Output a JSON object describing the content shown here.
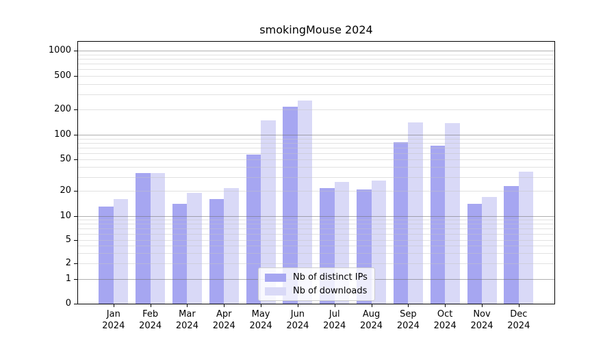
{
  "chart_data": {
    "type": "bar",
    "title": "smokingMouse 2024",
    "year": "2024",
    "categories": [
      "Jan",
      "Feb",
      "Mar",
      "Apr",
      "May",
      "Jun",
      "Jul",
      "Aug",
      "Sep",
      "Oct",
      "Nov",
      "Dec"
    ],
    "series": [
      {
        "name": "Nb of distinct IPs",
        "color": "#a6a6f1",
        "values": [
          13,
          34,
          14,
          16,
          57,
          215,
          22,
          21,
          81,
          74,
          14,
          23
        ]
      },
      {
        "name": "Nb of downloads",
        "color": "#d9d9f7",
        "values": [
          16,
          34,
          19,
          22,
          150,
          255,
          26,
          27,
          142,
          138,
          17,
          35
        ]
      }
    ],
    "y_ticks": [
      0,
      1,
      2,
      5,
      10,
      20,
      50,
      100,
      200,
      500,
      1000
    ],
    "xlabel": "",
    "ylabel": "",
    "ylim": [
      0,
      1000
    ],
    "y_scale": "log-like with zero baseline",
    "grid": "on",
    "legend_position": "bottom-center"
  },
  "colors": {
    "background": "#ffffff",
    "axis": "#000000",
    "major_grid": "#b0b0b0",
    "minor_grid": "#e2e2e2"
  }
}
